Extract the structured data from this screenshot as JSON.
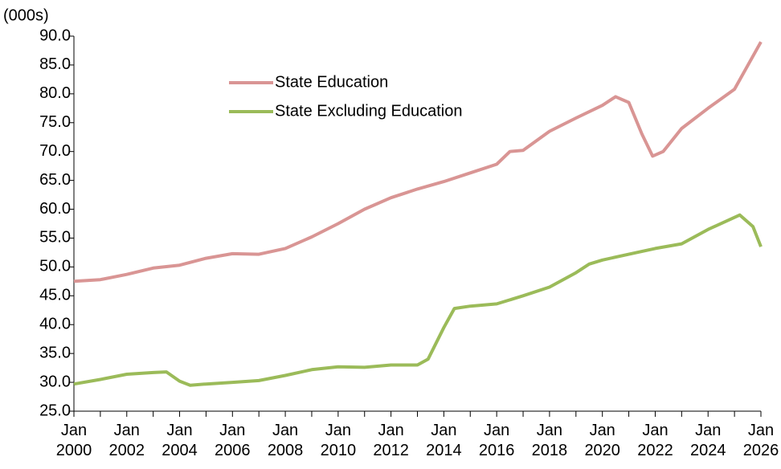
{
  "chart_data": {
    "type": "line",
    "y_label": "(000s)",
    "xlim": [
      2000,
      2026
    ],
    "xticks": [
      {
        "value": 2000,
        "label": "Jan 2000"
      },
      {
        "value": 2002,
        "label": "Jan 2002"
      },
      {
        "value": 2004,
        "label": "Jan 2004"
      },
      {
        "value": 2006,
        "label": "Jan 2006"
      },
      {
        "value": 2008,
        "label": "Jan 2008"
      },
      {
        "value": 2010,
        "label": "Jan 2010"
      },
      {
        "value": 2012,
        "label": "Jan 2012"
      },
      {
        "value": 2014,
        "label": "Jan 2014"
      },
      {
        "value": 2016,
        "label": "Jan 2016"
      },
      {
        "value": 2018,
        "label": "Jan 2018"
      },
      {
        "value": 2020,
        "label": "Jan 2020"
      },
      {
        "value": 2022,
        "label": "Jan 2022"
      },
      {
        "value": 2024,
        "label": "Jan 2024"
      },
      {
        "value": 2026,
        "label": "Jan 2026"
      }
    ],
    "ylim": [
      25,
      90
    ],
    "yticks": [
      {
        "value": 25,
        "label": "25.0"
      },
      {
        "value": 30,
        "label": "30.0"
      },
      {
        "value": 35,
        "label": "35.0"
      },
      {
        "value": 40,
        "label": "40.0"
      },
      {
        "value": 45,
        "label": "45.0"
      },
      {
        "value": 50,
        "label": "50.0"
      },
      {
        "value": 55,
        "label": "55.0"
      },
      {
        "value": 60,
        "label": "60.0"
      },
      {
        "value": 65,
        "label": "65.0"
      },
      {
        "value": 70,
        "label": "70.0"
      },
      {
        "value": 75,
        "label": "75.0"
      },
      {
        "value": 80,
        "label": "80.0"
      },
      {
        "value": 85,
        "label": "85.0"
      },
      {
        "value": 90,
        "label": "90.0"
      }
    ],
    "series": [
      {
        "name": "State Education",
        "color": "#d99594",
        "x": [
          2000,
          2001,
          2002,
          2003,
          2004,
          2005,
          2006,
          2007,
          2008,
          2009,
          2010,
          2011,
          2012,
          2013,
          2014,
          2015,
          2016,
          2016.5,
          2017,
          2018,
          2019,
          2020,
          2020.5,
          2021,
          2021.5,
          2021.9,
          2022.3,
          2023,
          2024,
          2025,
          2026
        ],
        "values": [
          47.5,
          47.8,
          48.7,
          49.8,
          50.3,
          51.5,
          52.3,
          52.2,
          53.2,
          55.2,
          57.5,
          60.0,
          62.0,
          63.5,
          64.8,
          66.3,
          67.8,
          70.0,
          70.2,
          73.5,
          75.8,
          78.0,
          79.5,
          78.5,
          73.0,
          69.2,
          70.0,
          74.0,
          77.5,
          80.8,
          89.0
        ]
      },
      {
        "name": "State Excluding Education",
        "color": "#9bbb59",
        "x": [
          2000,
          2001,
          2002,
          2003,
          2003.5,
          2004,
          2004.4,
          2005,
          2006,
          2007,
          2008,
          2009,
          2010,
          2011,
          2012,
          2013,
          2013.4,
          2014,
          2014.4,
          2015,
          2016,
          2017,
          2018,
          2019,
          2019.5,
          2020,
          2021,
          2022,
          2023,
          2024,
          2025.2,
          2025.7,
          2026
        ],
        "values": [
          29.7,
          30.5,
          31.4,
          31.7,
          31.8,
          30.2,
          29.5,
          29.7,
          30.0,
          30.3,
          31.2,
          32.2,
          32.7,
          32.6,
          33.0,
          33.0,
          34.0,
          39.5,
          42.8,
          43.2,
          43.6,
          45.0,
          46.5,
          49.0,
          50.5,
          51.2,
          52.2,
          53.2,
          54.0,
          56.5,
          59.0,
          57.0,
          53.5
        ]
      }
    ]
  }
}
